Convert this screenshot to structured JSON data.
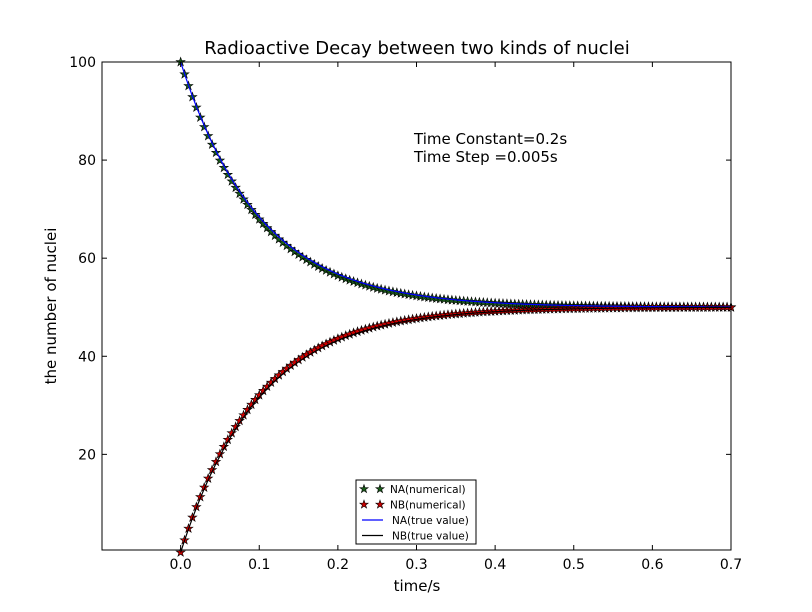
{
  "chart_data": {
    "type": "line",
    "title": "Radioactive Decay between two kinds of nuclei",
    "xlabel": "time/s",
    "ylabel": "the number of nuclei",
    "xlim": [
      -0.1,
      0.7
    ],
    "ylim": [
      0.5,
      100
    ],
    "xticks": [
      0.0,
      0.1,
      0.2,
      0.3,
      0.4,
      0.5,
      0.6,
      0.7
    ],
    "xtick_labels": [
      "0.0",
      "0.1",
      "0.2",
      "0.3",
      "0.4",
      "0.5",
      "0.6",
      "0.7"
    ],
    "yticks": [
      20,
      40,
      60,
      80,
      100
    ],
    "ytick_labels": [
      "20",
      "40",
      "60",
      "80",
      "100"
    ],
    "grid": false,
    "legend_position": "lower-center",
    "annotation_lines": [
      "Time Constant=0.2s",
      "Time Step =0.005s"
    ],
    "time_constant": 0.2,
    "time_step": 0.005,
    "series": [
      {
        "name": "NA(numerical)",
        "style": "star-markers",
        "color": "#1a5c1a",
        "initial": 100,
        "equilibrium": 50
      },
      {
        "name": "NB(numerical)",
        "style": "star-markers",
        "color": "#cc0000",
        "initial": 0,
        "equilibrium": 50
      },
      {
        "name": "NA(true value)",
        "style": "line",
        "color": "#0000ff",
        "initial": 100,
        "equilibrium": 50
      },
      {
        "name": "NB(true value)",
        "style": "line",
        "color": "#000000",
        "initial": 0,
        "equilibrium": 50
      }
    ]
  }
}
